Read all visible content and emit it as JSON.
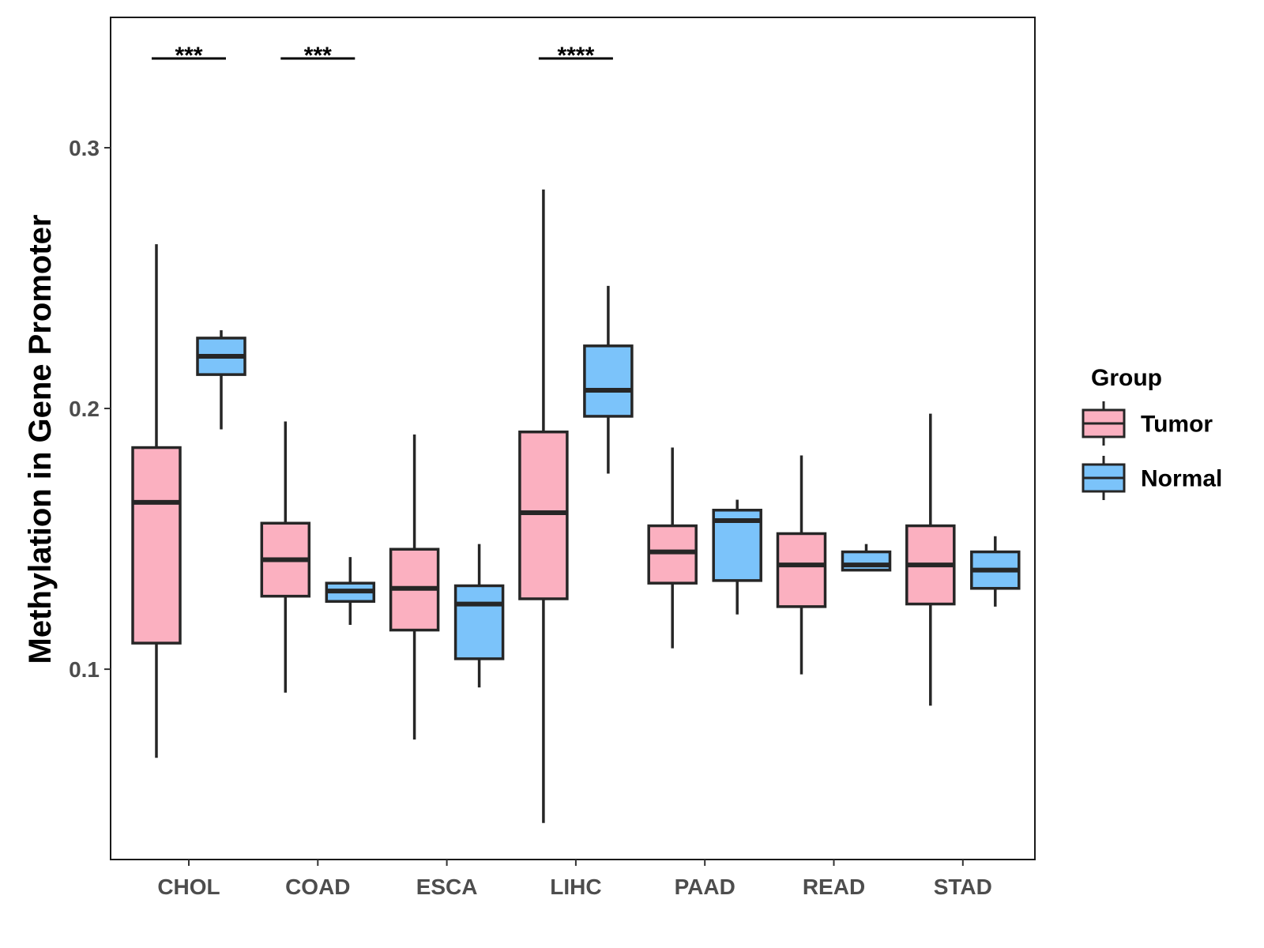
{
  "chart_data": {
    "type": "box",
    "title": "",
    "xlabel": "",
    "ylabel": "Methylation in Gene Promoter",
    "ylim": [
      0.027,
      0.35
    ],
    "yticks": [
      0.1,
      0.2,
      0.3
    ],
    "ytick_labels": [
      "0.1",
      "0.2",
      "0.3"
    ],
    "categories": [
      "CHOL",
      "COAD",
      "ESCA",
      "LIHC",
      "PAAD",
      "READ",
      "STAD"
    ],
    "legend": {
      "title": "Group",
      "position": "right",
      "entries": [
        {
          "name": "Tumor",
          "color": "#FBB0C0"
        },
        {
          "name": "Normal",
          "color": "#7BC3FA"
        }
      ]
    },
    "series": [
      {
        "name": "Tumor",
        "color": "#FBB0C0",
        "boxes": [
          {
            "min": 0.066,
            "q1": 0.11,
            "median": 0.164,
            "q3": 0.185,
            "max": 0.263
          },
          {
            "min": 0.091,
            "q1": 0.128,
            "median": 0.142,
            "q3": 0.156,
            "max": 0.195
          },
          {
            "min": 0.073,
            "q1": 0.115,
            "median": 0.131,
            "q3": 0.146,
            "max": 0.19
          },
          {
            "min": 0.041,
            "q1": 0.127,
            "median": 0.16,
            "q3": 0.191,
            "max": 0.284
          },
          {
            "min": 0.108,
            "q1": 0.133,
            "median": 0.145,
            "q3": 0.155,
            "max": 0.185
          },
          {
            "min": 0.098,
            "q1": 0.124,
            "median": 0.14,
            "q3": 0.152,
            "max": 0.182
          },
          {
            "min": 0.086,
            "q1": 0.125,
            "median": 0.14,
            "q3": 0.155,
            "max": 0.198
          }
        ]
      },
      {
        "name": "Normal",
        "color": "#7BC3FA",
        "boxes": [
          {
            "min": 0.192,
            "q1": 0.213,
            "median": 0.22,
            "q3": 0.227,
            "max": 0.23
          },
          {
            "min": 0.117,
            "q1": 0.126,
            "median": 0.13,
            "q3": 0.133,
            "max": 0.143
          },
          {
            "min": 0.093,
            "q1": 0.104,
            "median": 0.125,
            "q3": 0.132,
            "max": 0.148
          },
          {
            "min": 0.175,
            "q1": 0.197,
            "median": 0.207,
            "q3": 0.224,
            "max": 0.247
          },
          {
            "min": 0.121,
            "q1": 0.134,
            "median": 0.157,
            "q3": 0.161,
            "max": 0.165
          },
          {
            "min": 0.138,
            "q1": 0.138,
            "median": 0.14,
            "q3": 0.145,
            "max": 0.148
          },
          {
            "min": 0.124,
            "q1": 0.131,
            "median": 0.138,
            "q3": 0.145,
            "max": 0.151
          }
        ]
      }
    ],
    "annotations": [
      {
        "category": "CHOL",
        "text": "***"
      },
      {
        "category": "COAD",
        "text": "***"
      },
      {
        "category": "LIHC",
        "text": "****"
      }
    ]
  }
}
